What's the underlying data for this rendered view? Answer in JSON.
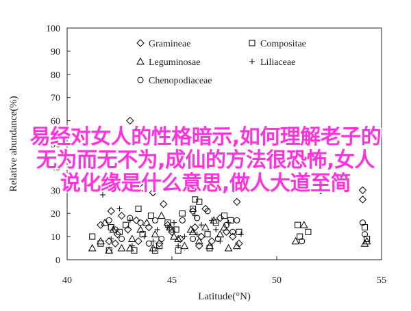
{
  "chart_data": {
    "type": "scatter",
    "xlabel": "Latitude(°N)",
    "ylabel": "Relative abundance(%)",
    "xlim": [
      40,
      55
    ],
    "ylim": [
      0,
      100
    ],
    "xticks": [
      40,
      45,
      50,
      55
    ],
    "yticks": [
      0,
      10,
      20,
      30,
      40,
      50,
      60,
      70,
      80,
      90,
      100
    ],
    "grid": false,
    "legend_position": "top-center",
    "series": [
      {
        "name": "Gramineae",
        "marker": "diamond",
        "points": [
          [
            43.0,
            60
          ],
          [
            42.1,
            21
          ],
          [
            42.6,
            19
          ],
          [
            43.3,
            17
          ],
          [
            43.6,
            31
          ],
          [
            44.1,
            29
          ],
          [
            44.6,
            24
          ],
          [
            46.0,
            21
          ],
          [
            46.6,
            22
          ],
          [
            47.3,
            18
          ],
          [
            48.1,
            25
          ],
          [
            51.2,
            35
          ],
          [
            52.1,
            30
          ],
          [
            54.1,
            30
          ],
          [
            54.1,
            26
          ],
          [
            41.6,
            15
          ],
          [
            42.0,
            8
          ],
          [
            42.4,
            11
          ],
          [
            42.9,
            13
          ],
          [
            43.4,
            8
          ],
          [
            43.9,
            14
          ],
          [
            44.4,
            7
          ],
          [
            45.0,
            12
          ],
          [
            45.4,
            9
          ],
          [
            46.1,
            14
          ],
          [
            46.4,
            10
          ],
          [
            46.9,
            8
          ],
          [
            47.6,
            12
          ],
          [
            47.9,
            10
          ],
          [
            48.2,
            7
          ],
          [
            42.3,
            7
          ],
          [
            44.8,
            15
          ],
          [
            46.3,
            6
          ]
        ]
      },
      {
        "name": "Compositae",
        "marker": "square",
        "points": [
          [
            41.2,
            10
          ],
          [
            41.6,
            7
          ],
          [
            42.1,
            14
          ],
          [
            42.5,
            12
          ],
          [
            42.8,
            15
          ],
          [
            43.4,
            22
          ],
          [
            43.6,
            11
          ],
          [
            44.0,
            19
          ],
          [
            44.4,
            6
          ],
          [
            44.8,
            16
          ],
          [
            45.2,
            13
          ],
          [
            45.5,
            20
          ],
          [
            46.0,
            22
          ],
          [
            46.3,
            25
          ],
          [
            46.7,
            11
          ],
          [
            47.1,
            16
          ],
          [
            47.5,
            19
          ],
          [
            47.8,
            17
          ],
          [
            48.2,
            12
          ],
          [
            51.0,
            15
          ],
          [
            51.5,
            12
          ],
          [
            54.2,
            14
          ],
          [
            54.3,
            9
          ],
          [
            42.0,
            4
          ],
          [
            43.2,
            4
          ],
          [
            44.2,
            4
          ],
          [
            45.3,
            4
          ],
          [
            46.1,
            26
          ],
          [
            46.8,
            5
          ],
          [
            51.1,
            10
          ]
        ]
      },
      {
        "name": "Leguminosae",
        "marker": "triangle",
        "points": [
          [
            41.2,
            5
          ],
          [
            41.6,
            8
          ],
          [
            41.8,
            16
          ],
          [
            42.2,
            13
          ],
          [
            42.6,
            5
          ],
          [
            43.1,
            9
          ],
          [
            43.5,
            13
          ],
          [
            43.8,
            16
          ],
          [
            44.2,
            11
          ],
          [
            44.5,
            19
          ],
          [
            44.9,
            14
          ],
          [
            45.3,
            9
          ],
          [
            45.6,
            6
          ],
          [
            45.9,
            13
          ],
          [
            46.3,
            8
          ],
          [
            46.6,
            14
          ],
          [
            47.0,
            17
          ],
          [
            47.3,
            11
          ],
          [
            47.7,
            5
          ],
          [
            50.9,
            8
          ],
          [
            51.3,
            15
          ],
          [
            54.3,
            8
          ],
          [
            54.2,
            7
          ],
          [
            42.0,
            4
          ],
          [
            43.0,
            5
          ],
          [
            44.1,
            5
          ],
          [
            45.1,
            10
          ],
          [
            46.0,
            12
          ],
          [
            46.8,
            6
          ],
          [
            47.5,
            14
          ],
          [
            48.1,
            6
          ]
        ]
      },
      {
        "name": "Liliaceae",
        "marker": "plus",
        "points": [
          [
            41.7,
            28
          ],
          [
            42.5,
            22
          ],
          [
            43.0,
            17
          ],
          [
            43.7,
            10
          ],
          [
            44.3,
            13
          ],
          [
            44.8,
            14
          ],
          [
            45.1,
            16
          ],
          [
            45.6,
            10
          ],
          [
            46.1,
            19
          ],
          [
            46.4,
            15
          ],
          [
            46.9,
            17
          ],
          [
            47.3,
            8
          ],
          [
            47.7,
            16
          ],
          [
            48.3,
            11
          ],
          [
            42.1,
            9
          ],
          [
            43.1,
            6
          ],
          [
            44.1,
            8
          ],
          [
            45.3,
            6
          ],
          [
            46.2,
            11
          ],
          [
            47.1,
            13
          ]
        ]
      },
      {
        "name": "Chenopodiaceae",
        "marker": "circle",
        "points": [
          [
            42.0,
            17
          ],
          [
            42.6,
            9
          ],
          [
            43.0,
            18
          ],
          [
            43.5,
            16
          ],
          [
            43.9,
            7
          ],
          [
            44.5,
            9
          ],
          [
            45.0,
            13
          ],
          [
            45.5,
            17
          ],
          [
            46.2,
            18
          ],
          [
            46.7,
            21
          ],
          [
            47.2,
            9
          ],
          [
            47.6,
            15
          ],
          [
            48.1,
            17
          ],
          [
            51.2,
            8
          ],
          [
            54.1,
            16
          ],
          [
            54.2,
            11
          ],
          [
            42.3,
            13
          ],
          [
            44.2,
            17
          ],
          [
            46.0,
            9
          ],
          [
            47.9,
            12
          ]
        ]
      }
    ]
  },
  "overlay": {
    "lines": [
      "易经对女人的性格暗示,如何理解老子的",
      "无为而无不为,成仙的方法很恐怖,女人",
      "说化缘是什么意思,做人大道至简"
    ],
    "color": "#ff33dd"
  }
}
